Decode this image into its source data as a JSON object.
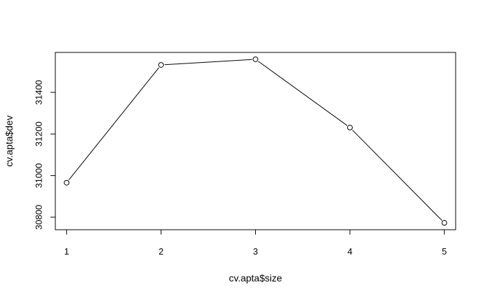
{
  "chart_data": {
    "type": "line",
    "title": "",
    "xlabel": "cv.apta$size",
    "ylabel": "cv.apta$dev",
    "x": [
      1,
      2,
      3,
      4,
      5
    ],
    "series": [
      {
        "values": [
          30966,
          31532,
          31559,
          31231,
          30773
        ]
      }
    ],
    "xticks": [
      "1",
      "2",
      "3",
      "4",
      "5"
    ],
    "yticks": [
      "30800",
      "31000",
      "31200",
      "31400"
    ],
    "xlim": [
      0.88,
      5.12
    ],
    "ylim": [
      30740,
      31592
    ],
    "grid": false,
    "markers": "open-circle",
    "legend": "none",
    "line_color": "#000000",
    "background": "#ffffff"
  }
}
